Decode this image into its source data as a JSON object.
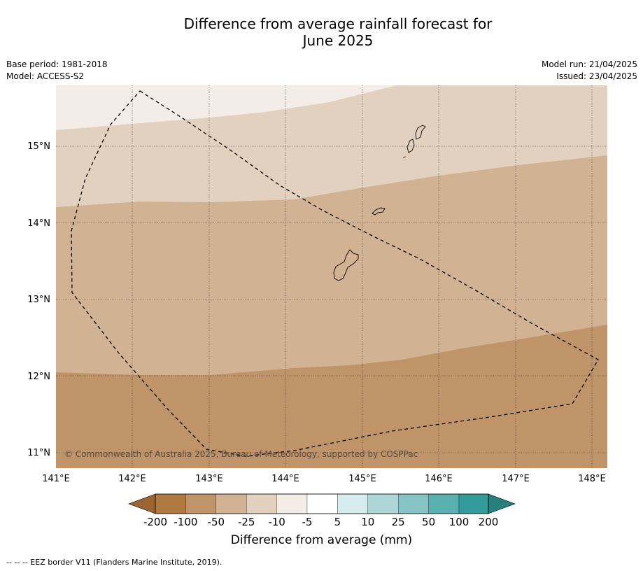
{
  "title_line1": "Difference from average rainfall forecast for",
  "title_line2": "June 2025",
  "meta_left": {
    "base_period": "Base period: 1981-2018",
    "model": "Model: ACCESS-S2"
  },
  "meta_right": {
    "model_run": "Model run: 21/04/2025",
    "issued": "Issued: 23/04/2025"
  },
  "map": {
    "lon_ticks": [
      "141°E",
      "142°E",
      "143°E",
      "144°E",
      "145°E",
      "146°E",
      "147°E",
      "148°E"
    ],
    "lat_ticks": [
      "15°N",
      "14°N",
      "13°N",
      "12°N",
      "11°N"
    ],
    "copyright": "© Commonwealth of Australia 2025, Bureau of Meteorology, supported by COSPPac"
  },
  "colorbar": {
    "ticks": [
      "-200",
      "-100",
      "-50",
      "-25",
      "-10",
      "-5",
      "5",
      "10",
      "25",
      "50",
      "100",
      "200"
    ],
    "colors": [
      "#9c6333",
      "#b07940",
      "#c09469",
      "#d1b293",
      "#e3d1bf",
      "#f4ece6",
      "#ffffff",
      "#d7ecec",
      "#aed6d6",
      "#86c3c3",
      "#5aafaf",
      "#349b9b",
      "#26807d"
    ],
    "label": "Difference from average (mm)"
  },
  "footnote": "--  --  -- EEZ border V11 (Flanders Marine Institute, 2019)."
}
